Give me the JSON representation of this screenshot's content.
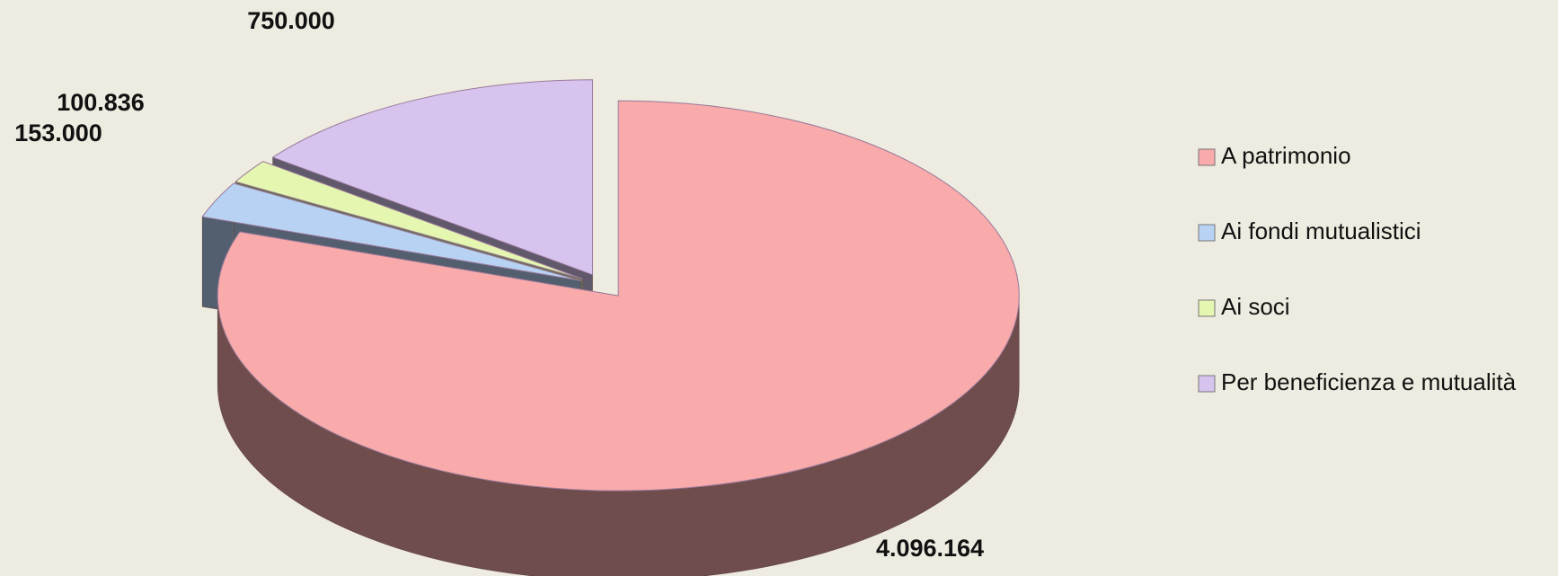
{
  "chart_data": {
    "type": "pie3d",
    "categories": [
      "A patrimonio",
      "Ai fondi mutualistici",
      "Ai soci",
      "Per beneficienza e mutualità"
    ],
    "values": [
      4096164,
      153000,
      100836,
      750000
    ],
    "value_labels": [
      "4.096.164",
      "153.000",
      "100.836",
      "750.000"
    ],
    "colors": [
      "#f9aaaa",
      "#b8d2f4",
      "#e4f6b0",
      "#d6c4ee"
    ],
    "legend": "right"
  }
}
